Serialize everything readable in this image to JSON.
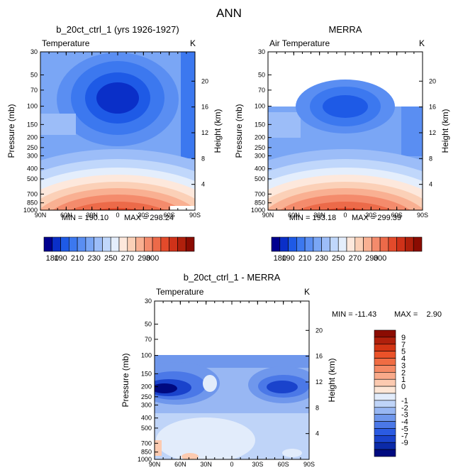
{
  "figure_title": "ANN",
  "colors": {
    "temperature_scale": [
      "#00008f",
      "#0a2fc8",
      "#1e5ae6",
      "#3c78ef",
      "#5a8ef2",
      "#7aa6f5",
      "#9cbdf8",
      "#c0d7fb",
      "#e4eefc",
      "#fde8dc",
      "#fbd0b7",
      "#f9b092",
      "#f48b6c",
      "#ec6a49",
      "#e34a2b",
      "#cf3219",
      "#b0200c",
      "#8b0c02"
    ],
    "difference_scale": [
      "#8b0c02",
      "#b0200c",
      "#d33514",
      "#ea5229",
      "#f06c43",
      "#f58a65",
      "#f9aa8a",
      "#fccab0",
      "#fde6d6",
      "#e2ecfb",
      "#bfd4f8",
      "#98b7f3",
      "#6f97ec",
      "#4b78e7",
      "#2b5be2",
      "#1a43cc",
      "#0b2aa8",
      "#000a80"
    ]
  },
  "chart_data": [
    {
      "type": "heatmap",
      "title": "b_20ct_ctrl_1 (yrs 1926-1927)",
      "variable_label": "Temperature",
      "units_label": "K",
      "ylabel": "Pressure (mb)",
      "y2label": "Height (km)",
      "x_ticks": [
        "90N",
        "60N",
        "30N",
        "0",
        "30S",
        "60S",
        "90S"
      ],
      "y_ticks": [
        "30",
        "50",
        "70",
        "100",
        "150",
        "200",
        "250",
        "300",
        "400",
        "500",
        "700",
        "850",
        "1000"
      ],
      "y2_ticks": [
        "20",
        "16",
        "12",
        "8",
        "4"
      ],
      "min_label": "MIN = 190.10",
      "max_label": "MAX = 298.24",
      "min": 190.1,
      "max": 298.24,
      "data_top_pressure": 30
    },
    {
      "type": "heatmap",
      "title": "MERRA",
      "variable_label": "Air Temperature",
      "units_label": "K",
      "ylabel": "Pressure (mb)",
      "y2label": "Height (km)",
      "x_ticks": [
        "90N",
        "60N",
        "30N",
        "0",
        "30S",
        "60S",
        "90S"
      ],
      "y_ticks": [
        "30",
        "50",
        "70",
        "100",
        "150",
        "200",
        "250",
        "300",
        "400",
        "500",
        "700",
        "850",
        "1000"
      ],
      "y2_ticks": [
        "20",
        "16",
        "12",
        "8",
        "4"
      ],
      "min_label": "MIN = 193.18",
      "max_label": "MAX = 299.39",
      "min": 193.18,
      "max": 299.39,
      "data_top_pressure": 100
    },
    {
      "type": "heatmap",
      "title": "b_20ct_ctrl_1 - MERRA",
      "variable_label": "Temperature",
      "units_label": "K",
      "ylabel": "Pressure (mb)",
      "y2label": "Height (km)",
      "x_ticks": [
        "90N",
        "60N",
        "30N",
        "0",
        "30S",
        "60S",
        "90S"
      ],
      "y_ticks": [
        "30",
        "50",
        "70",
        "100",
        "150",
        "200",
        "250",
        "300",
        "400",
        "500",
        "700",
        "850",
        "1000"
      ],
      "y2_ticks": [
        "20",
        "16",
        "12",
        "8",
        "4"
      ],
      "min_label": "MIN = -11.43",
      "max_label": "MAX =    2.90",
      "min": -11.43,
      "max": 2.9,
      "data_top_pressure": 100
    }
  ],
  "colorbars": {
    "temperature": {
      "labels": [
        "180",
        "190",
        "210",
        "230",
        "250",
        "270",
        "290",
        "300"
      ]
    },
    "difference": {
      "labels": [
        "9",
        "7",
        "5",
        "4",
        "3",
        "2",
        "1",
        "0",
        "-1",
        "-2",
        "-3",
        "-4",
        "-5",
        "-7",
        "-9"
      ]
    }
  }
}
